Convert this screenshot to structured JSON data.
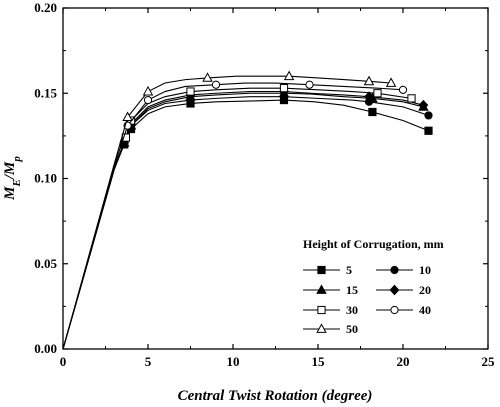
{
  "chart_data": {
    "type": "line",
    "xlabel": "Central Twist Rotation (degree)",
    "ylabel": "M_E/M_p",
    "xlim": [
      0,
      25
    ],
    "ylim": [
      0,
      0.2
    ],
    "xticks": [
      "0",
      "5",
      "10",
      "15",
      "20",
      "25"
    ],
    "yticks": [
      "0.00",
      "0.05",
      "0.10",
      "0.15",
      "0.20"
    ],
    "legend_title": "Height of Corrugation, mm",
    "legend_placement": "bottom-right",
    "series": [
      {
        "name": "5",
        "marker": "square-filled",
        "x": [
          0,
          1,
          2,
          3,
          3.6,
          4,
          5,
          6,
          7.5,
          9,
          11.2,
          13,
          14.8,
          16.5,
          18.2,
          20,
          21.5
        ],
        "y": [
          0,
          0.035,
          0.07,
          0.105,
          0.12,
          0.129,
          0.138,
          0.142,
          0.144,
          0.145,
          0.1455,
          0.146,
          0.145,
          0.143,
          0.139,
          0.134,
          0.128
        ]
      },
      {
        "name": "10",
        "marker": "circle-filled",
        "x": [
          0,
          1,
          2,
          3,
          3.6,
          4,
          5,
          6,
          7.5,
          9,
          11,
          13,
          15,
          17,
          18,
          20,
          21.5
        ],
        "y": [
          0,
          0.035,
          0.07,
          0.105,
          0.121,
          0.131,
          0.14,
          0.144,
          0.146,
          0.147,
          0.148,
          0.148,
          0.147,
          0.146,
          0.145,
          0.142,
          0.137
        ]
      },
      {
        "name": "15",
        "marker": "triangle-filled",
        "x": [
          0,
          1,
          2,
          3,
          3.6,
          4,
          5,
          6,
          7.5,
          9,
          11,
          13,
          14.6,
          16.5,
          18.2,
          20,
          21.2
        ],
        "y": [
          0,
          0.035,
          0.07,
          0.105,
          0.121,
          0.131,
          0.141,
          0.145,
          0.148,
          0.149,
          0.15,
          0.15,
          0.1495,
          0.148,
          0.147,
          0.145,
          0.142
        ]
      },
      {
        "name": "20",
        "marker": "diamond-filled",
        "x": [
          0,
          1,
          2,
          3,
          3.6,
          4,
          5,
          6,
          7.5,
          9,
          11,
          13,
          14.6,
          16.5,
          18,
          20,
          21.2
        ],
        "y": [
          0,
          0.035,
          0.07,
          0.105,
          0.121,
          0.132,
          0.142,
          0.146,
          0.149,
          0.15,
          0.151,
          0.151,
          0.15,
          0.149,
          0.148,
          0.146,
          0.143
        ]
      },
      {
        "name": "30",
        "marker": "square-open",
        "x": [
          0,
          1,
          2,
          3,
          3.7,
          4,
          5,
          6,
          7.5,
          9,
          11,
          13,
          15,
          17,
          18.5,
          20.5
        ],
        "y": [
          0,
          0.035,
          0.07,
          0.106,
          0.124,
          0.134,
          0.144,
          0.148,
          0.151,
          0.152,
          0.153,
          0.153,
          0.152,
          0.151,
          0.15,
          0.147
        ]
      },
      {
        "name": "40",
        "marker": "circle-open",
        "x": [
          0,
          1,
          2,
          3,
          3.8,
          5,
          6,
          7.2,
          9,
          10.7,
          12.5,
          14.5,
          16.5,
          18.5,
          20
        ],
        "y": [
          0,
          0.035,
          0.07,
          0.107,
          0.131,
          0.146,
          0.151,
          0.154,
          0.155,
          0.156,
          0.156,
          0.155,
          0.154,
          0.153,
          0.152
        ]
      },
      {
        "name": "50",
        "marker": "triangle-open",
        "x": [
          0,
          1,
          2,
          3,
          3.8,
          5,
          6,
          7.2,
          8.5,
          10.2,
          12,
          13.3,
          15,
          16.5,
          18,
          19.3
        ],
        "y": [
          0,
          0.036,
          0.072,
          0.108,
          0.136,
          0.151,
          0.156,
          0.158,
          0.159,
          0.16,
          0.16,
          0.16,
          0.159,
          0.158,
          0.157,
          0.156
        ]
      }
    ]
  }
}
